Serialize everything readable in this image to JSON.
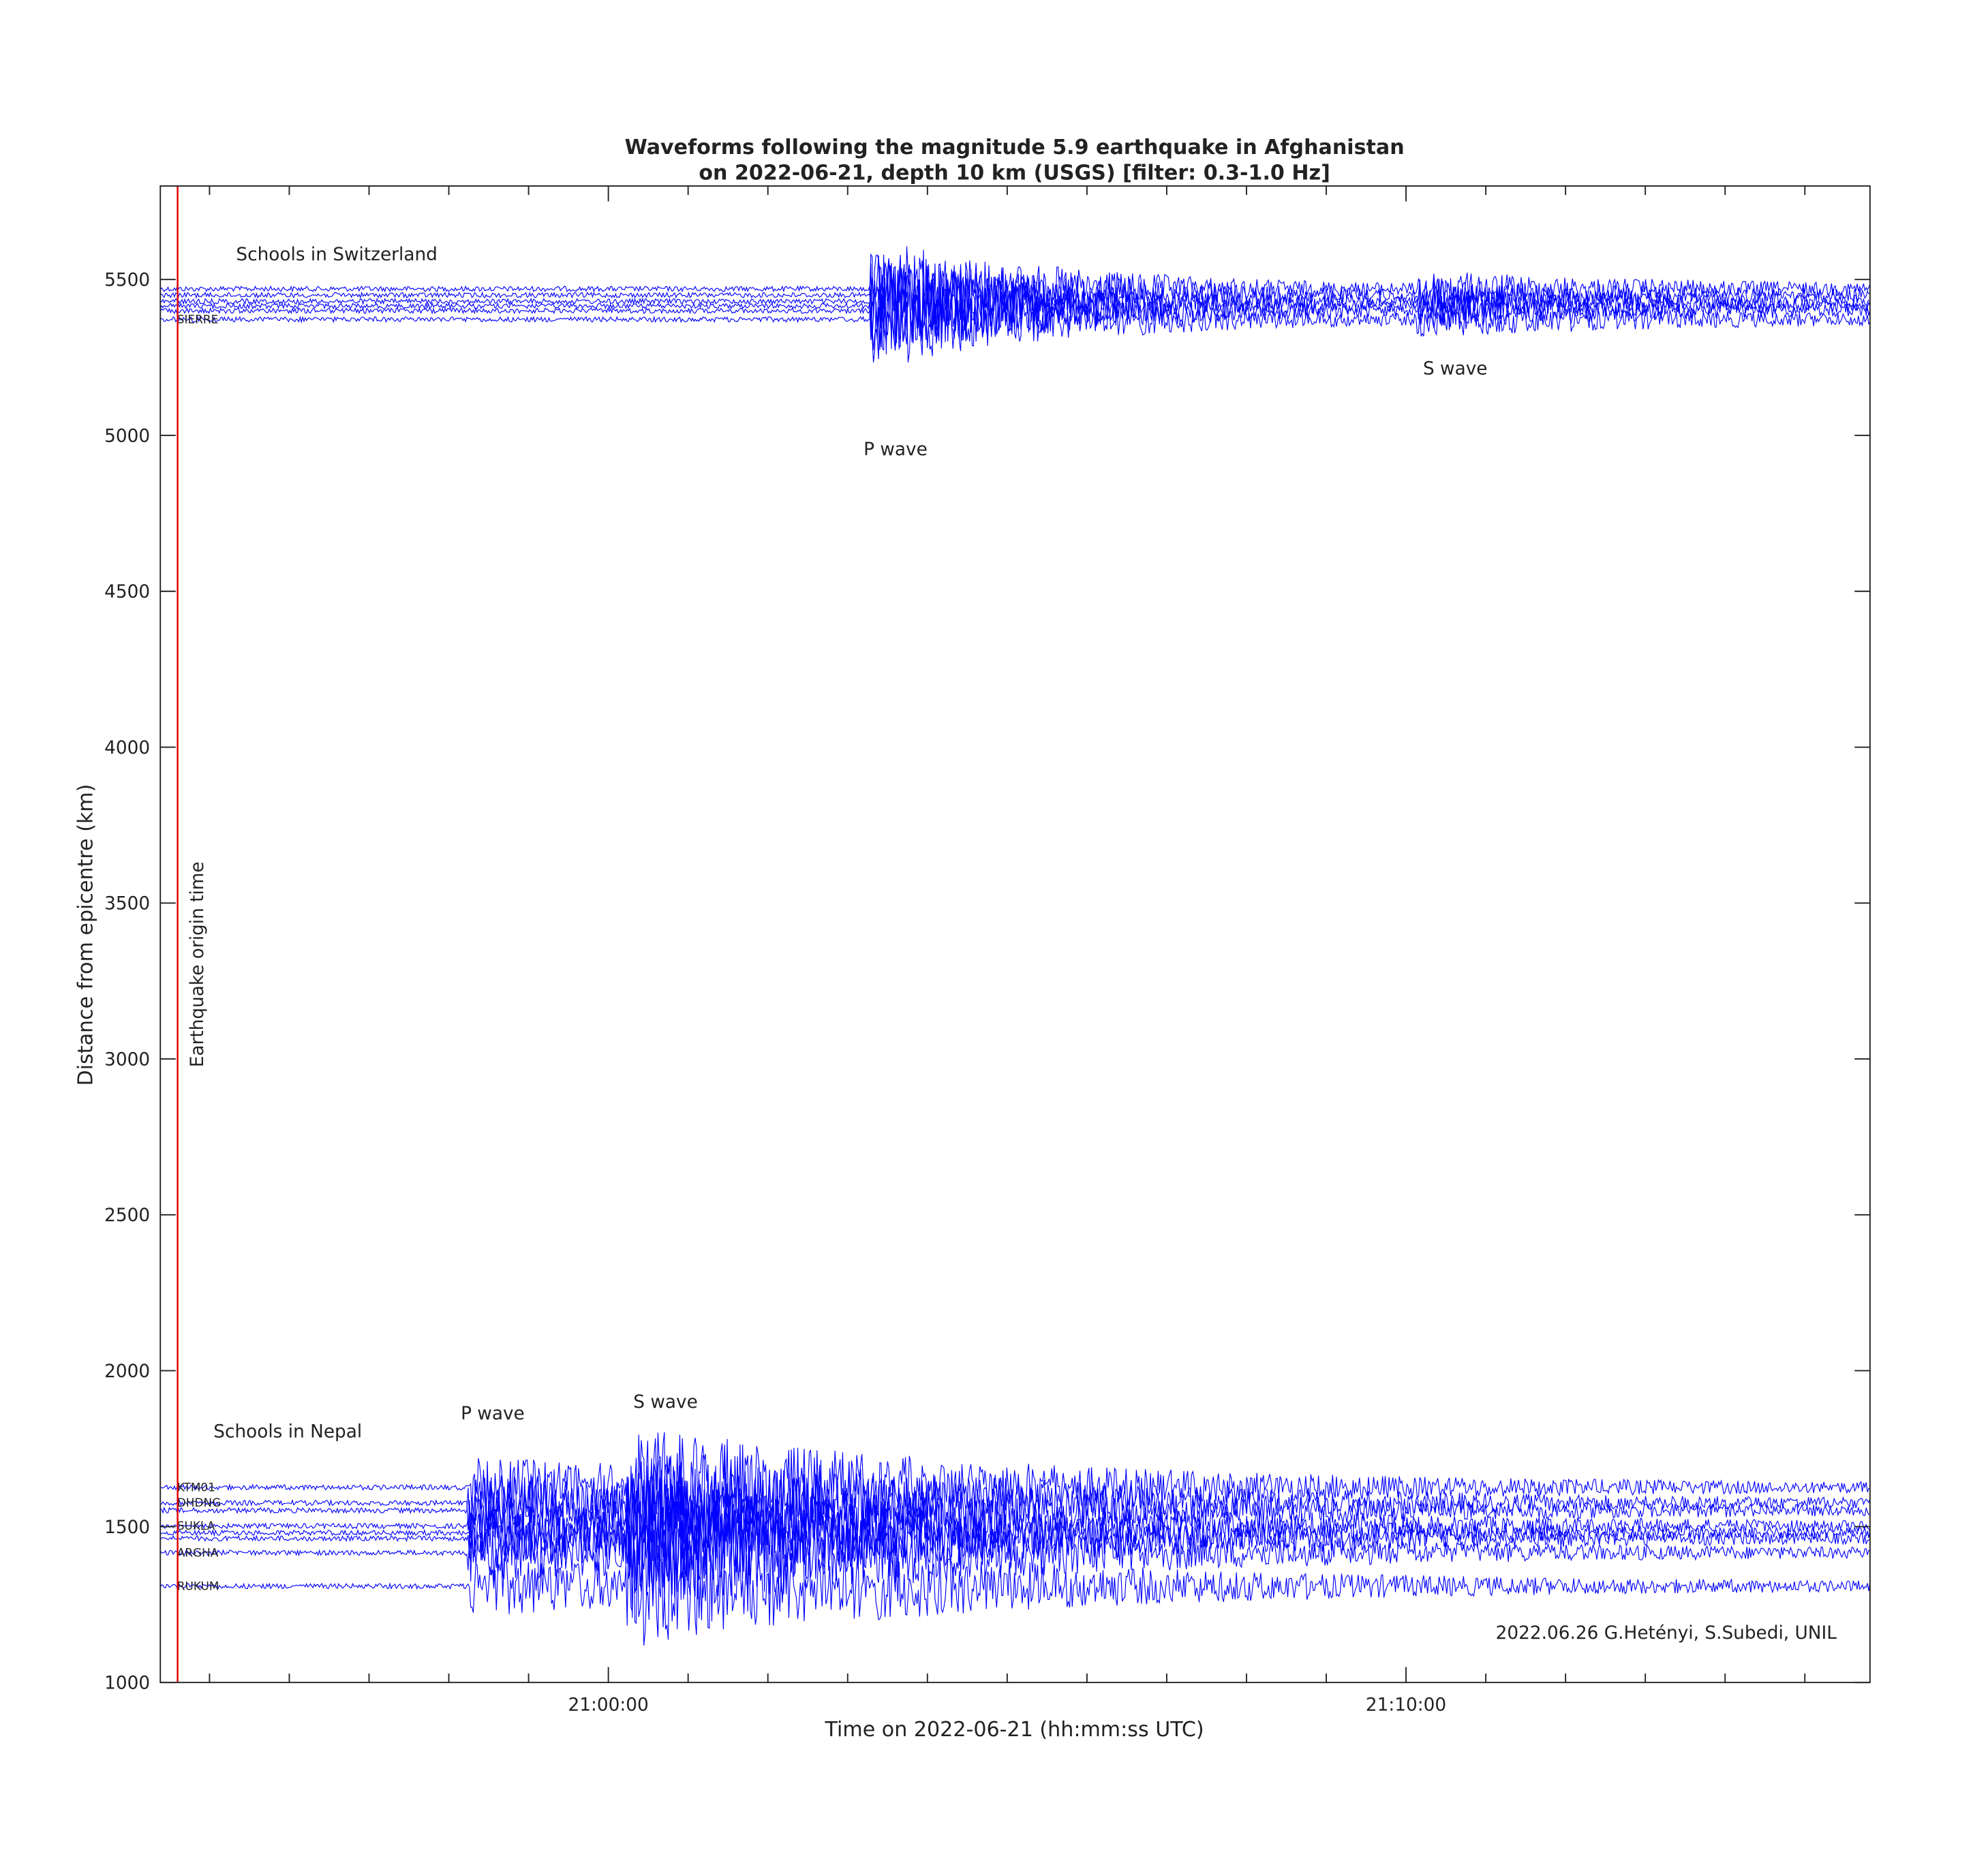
{
  "chart_data": {
    "type": "record-section",
    "title": "Waveforms following the magnitude 5.9 earthquake in Afghanistan",
    "subtitle": "on 2022-06-21, depth 10 km (USGS) [filter: 0.3-1.0 Hz]",
    "xlabel": "Time on 2022-06-21 (hh:mm:ss UTC)",
    "ylabel": "Distance from epicentre (km)",
    "xlim": [
      75263,
      76549
    ],
    "xticks": [
      {
        "value": 75600,
        "label": "21:00:00"
      },
      {
        "value": 76200,
        "label": "21:10:00"
      }
    ],
    "xminorticks": [
      75300,
      75360,
      75420,
      75480,
      75540,
      75660,
      75720,
      75780,
      75840,
      75900,
      75960,
      76020,
      76080,
      76140,
      76260,
      76320,
      76380,
      76440,
      76500
    ],
    "ylim": [
      1000,
      5800
    ],
    "yticks": [
      1000,
      1500,
      2000,
      2500,
      3000,
      3500,
      4000,
      4500,
      5000,
      5500
    ],
    "origin_time": {
      "value": 75276,
      "label": "Earthquake origin time",
      "color": "#e00000"
    },
    "trace_color": "#0000ff",
    "traces": [
      {
        "name": null,
        "distance": 5470
      },
      {
        "name": null,
        "distance": 5450
      },
      {
        "name": null,
        "distance": 5430
      },
      {
        "name": null,
        "distance": 5415
      },
      {
        "name": null,
        "distance": 5400
      },
      {
        "name": "SIERRE",
        "distance": 5372
      },
      {
        "name": "KTM01",
        "distance": 1626
      },
      {
        "name": "DHDNG",
        "distance": 1576
      },
      {
        "name": null,
        "distance": 1552
      },
      {
        "name": "SUKLA",
        "distance": 1502
      },
      {
        "name": null,
        "distance": 1480
      },
      {
        "name": null,
        "distance": 1462
      },
      {
        "name": "ARGHA",
        "distance": 1416
      },
      {
        "name": "RUKUM",
        "distance": 1309
      }
    ],
    "annotations": [
      {
        "text": "Schools in Switzerland",
        "x": 75320,
        "y": 5562
      },
      {
        "text": "P wave",
        "x": 75816,
        "y": 4936,
        "color": "#1f7fe0"
      },
      {
        "text": "S wave",
        "x": 76237,
        "y": 5195,
        "color": "#1f7fe0"
      },
      {
        "text": "Schools in Nepal",
        "x": 75303,
        "y": 1786
      },
      {
        "text": "P wave",
        "x": 75513,
        "y": 1844,
        "color": "#1f7fe0"
      },
      {
        "text": "S wave",
        "x": 75643,
        "y": 1881,
        "color": "#1f7fe0"
      }
    ],
    "credit": "2022.06.26 G.Hetényi, S.Subedi, UNIL"
  }
}
